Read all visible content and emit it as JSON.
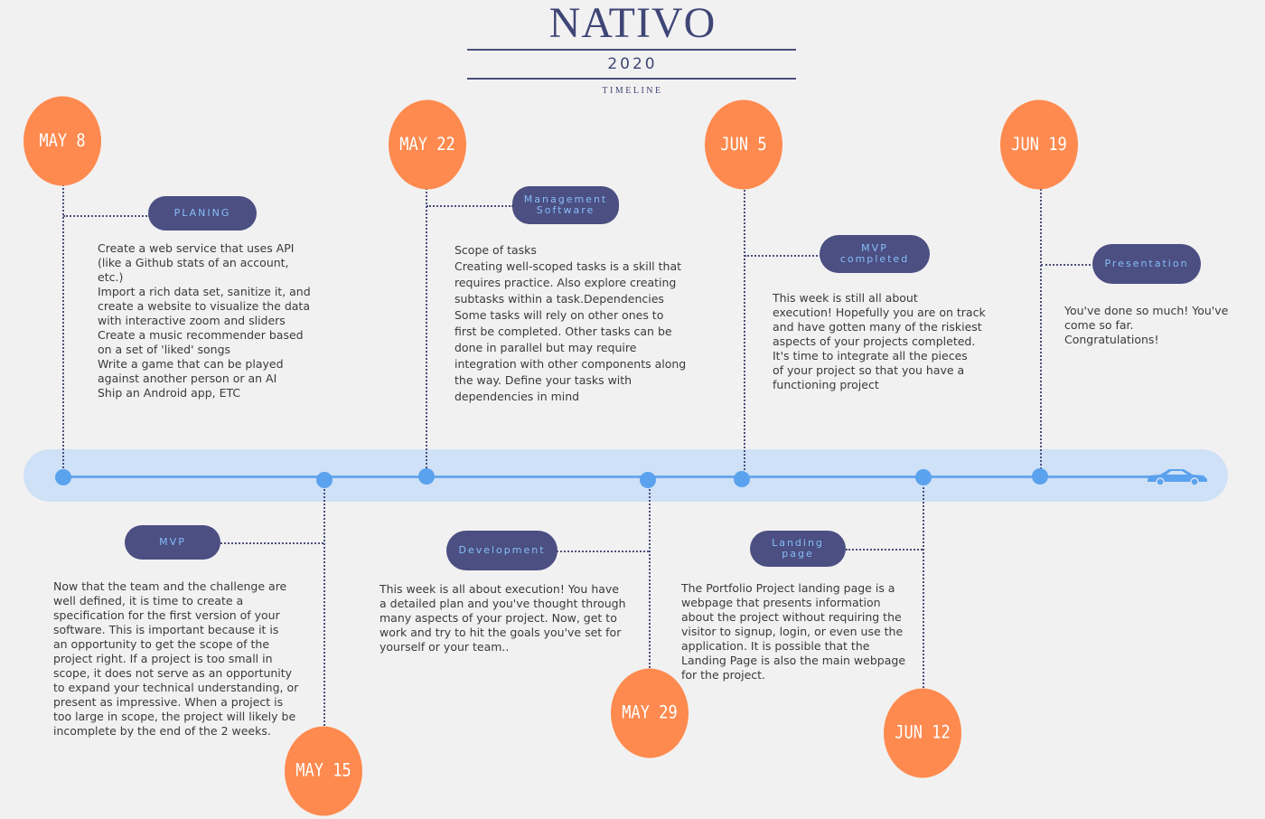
{
  "header": {
    "title": "NATIVO",
    "year": "2020",
    "subtitle": "TIMELINE"
  },
  "colors": {
    "accent": "#fe8a4f",
    "pill": "#4b4f82",
    "axis": "#6aa8ec",
    "band": "#cfe1f6"
  },
  "milestones": [
    {
      "date": "MAY 8",
      "label": "PLANING",
      "text": "Create a web service that uses API\n(like a Github stats of an account,\netc.)\nImport a rich data set, sanitize it, and\ncreate a website to visualize the data\nwith interactive zoom and sliders\nCreate a music recommender based\non a set of 'liked' songs\nWrite a game that can be played\nagainst another person or an AI\nShip an Android app, ETC"
    },
    {
      "date": "MAY 15",
      "label": "MVP",
      "text": "Now that the team and the challenge are\nwell defined, it is time to create a\nspecification for the first version of your\nsoftware. This is important because it is\nan opportunity to get the scope of the\nproject right. If a project is too small in\nscope, it does not serve as an opportunity\nto expand your technical understanding, or\npresent as impressive. When a project is\ntoo large in scope, the project will likely be\nincomplete by the end of the 2 weeks."
    },
    {
      "date": "MAY 22",
      "label": "Management Software",
      "text": "Scope of tasks\nCreating well-scoped tasks is a skill that\nrequires practice. Also explore creating\nsubtasks within a task.Dependencies\nSome tasks will rely on other ones to\nfirst be completed. Other tasks can be\ndone in parallel but may require\nintegration with other components along\nthe way. Define your tasks with\ndependencies in mind"
    },
    {
      "date": "MAY 29",
      "label": "Development",
      "text": "This week is all about execution! You have\na detailed plan and you've thought through\nmany aspects of your project. Now, get to\nwork and try to hit the goals you've set for\nyourself or your team.."
    },
    {
      "date": "JUN 5",
      "label": "MVP completed",
      "text": "This week is still all about\nexecution! Hopefully you are on track\nand have gotten many of the riskiest\naspects of your projects completed.\nIt's time to integrate all the pieces\nof your project so that you have a\nfunctioning project"
    },
    {
      "date": "JUN 12",
      "label": "Landing page",
      "text": "The Portfolio Project landing page is a\nwebpage that presents information\nabout the project without requiring the\nvisitor to signup, login, or even use the\napplication. It is possible that the\nLanding Page is also the main webpage\nfor the project."
    },
    {
      "date": "JUN 19",
      "label": "Presentation",
      "text": "You've done so much! You've\ncome so far.\nCongratulations!"
    }
  ],
  "icons": {
    "end": "car-icon"
  }
}
